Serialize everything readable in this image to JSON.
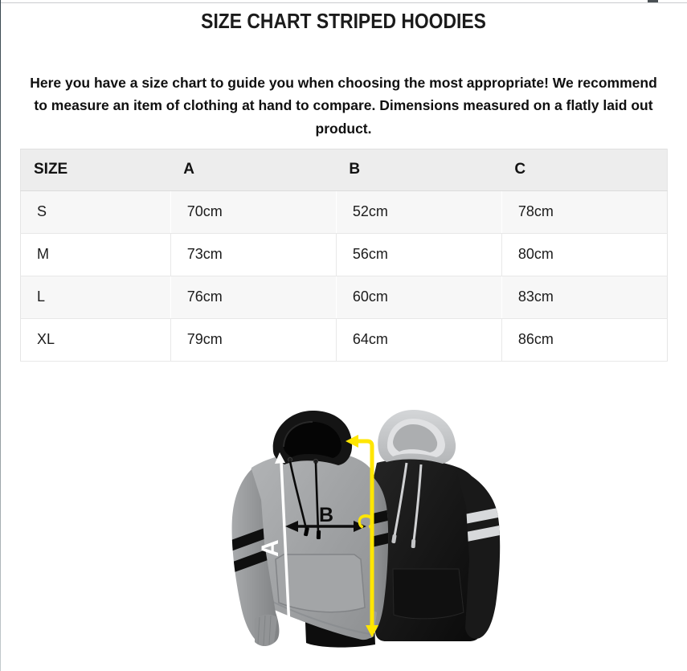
{
  "page": {
    "title": "SIZE CHART STRIPED HOODIES",
    "description": "Here you have a size chart to guide you when choosing the most appropriate! We recommend to measure an item of clothing at hand to compare. Dimensions measured on a flatly laid out product."
  },
  "size_table": {
    "columns": [
      "SIZE",
      "A",
      "B",
      "C"
    ],
    "rows": [
      [
        "S",
        "70cm",
        "52cm",
        "78cm"
      ],
      [
        "M",
        "73cm",
        "56cm",
        "80cm"
      ],
      [
        "L",
        "76cm",
        "60cm",
        "83cm"
      ],
      [
        "XL",
        "79cm",
        "64cm",
        "86cm"
      ]
    ]
  },
  "figure": {
    "measurement_labels": {
      "a": "A",
      "b": "B",
      "c": "C"
    },
    "colors": {
      "arrow_a": "#ffffff",
      "arrow_b": "#0d0d0d",
      "arrow_c": "#ffe600",
      "grey_hoodie": "#9fa1a3",
      "black_hoodie": "#161616",
      "grey_hood_of_black_hoodie": "#c7c9cb"
    },
    "description": "Two striped pullover hoodies, grey with black hood in front and black with grey hood behind, annotated with measurement arrows A (length), B (chest width) and C (sleeve length)"
  },
  "chart_data": {
    "type": "table",
    "title": "SIZE CHART STRIPED HOODIES",
    "columns": [
      "SIZE",
      "A",
      "B",
      "C"
    ],
    "rows": [
      [
        "S",
        "70cm",
        "52cm",
        "78cm"
      ],
      [
        "M",
        "73cm",
        "56cm",
        "80cm"
      ],
      [
        "L",
        "76cm",
        "60cm",
        "83cm"
      ],
      [
        "XL",
        "79cm",
        "64cm",
        "86cm"
      ]
    ]
  }
}
